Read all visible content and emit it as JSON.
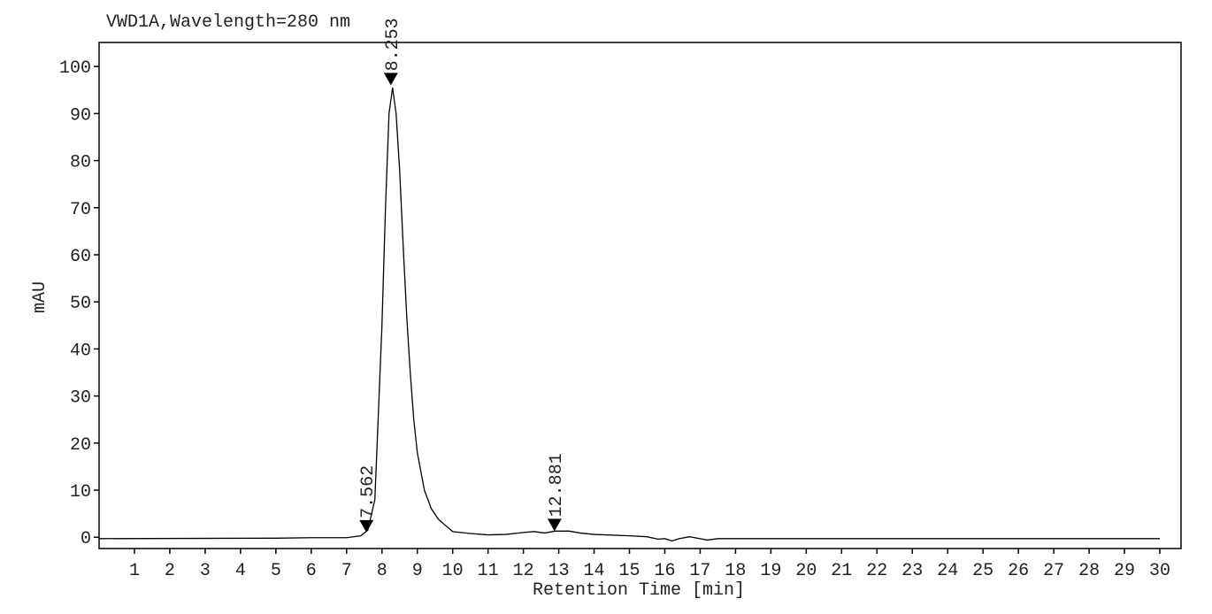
{
  "chart_data": {
    "type": "line",
    "title": "VWD1A,Wavelength=280 nm",
    "x_label": "Retention Time [min]",
    "y_label": "mAU",
    "xlim": [
      0,
      30.6
    ],
    "ylim": [
      -2.4,
      105.1
    ],
    "xticks": [
      1,
      2,
      3,
      4,
      5,
      6,
      7,
      8,
      9,
      10,
      11,
      12,
      13,
      14,
      15,
      16,
      17,
      18,
      19,
      20,
      21,
      22,
      23,
      24,
      25,
      26,
      27,
      28,
      29,
      30
    ],
    "yticks": [
      0,
      10,
      20,
      30,
      40,
      50,
      60,
      70,
      80,
      90,
      100
    ],
    "x": [
      0,
      5,
      6,
      7,
      7.4,
      7.6,
      7.8,
      8.0,
      8.1,
      8.2,
      8.3,
      8.4,
      8.5,
      8.6,
      8.7,
      8.8,
      8.9,
      9.0,
      9.2,
      9.4,
      9.6,
      9.8,
      10,
      10.5,
      11,
      11.5,
      12,
      12.3,
      12.6,
      12.9,
      13.3,
      13.6,
      14,
      15,
      15.5,
      15.8,
      16,
      16.2,
      16.4,
      16.7,
      17,
      17.2,
      17.5,
      20,
      25,
      30
    ],
    "series": [
      {
        "color": "#000000",
        "values": [
          -0.3,
          -0.2,
          -0.1,
          -0.1,
          0.3,
          1.5,
          8,
          45,
          70,
          90,
          95.5,
          90,
          78,
          62,
          47,
          35,
          25,
          18,
          10,
          6,
          3.8,
          2.5,
          1.2,
          0.8,
          0.5,
          0.6,
          1.0,
          1.2,
          0.9,
          1.3,
          1.3,
          0.9,
          0.6,
          0.3,
          0.1,
          -0.4,
          -0.3,
          -0.8,
          -0.3,
          0.1,
          -0.3,
          -0.6,
          -0.3,
          -0.3,
          -0.3,
          -0.3
        ]
      }
    ],
    "annotations": [
      {
        "x": 7.562,
        "y": 1.0,
        "label": "7.562"
      },
      {
        "x": 8.253,
        "y": 96,
        "label": "8.253"
      },
      {
        "x": 12.881,
        "y": 1.3,
        "label": "12.881"
      }
    ]
  }
}
